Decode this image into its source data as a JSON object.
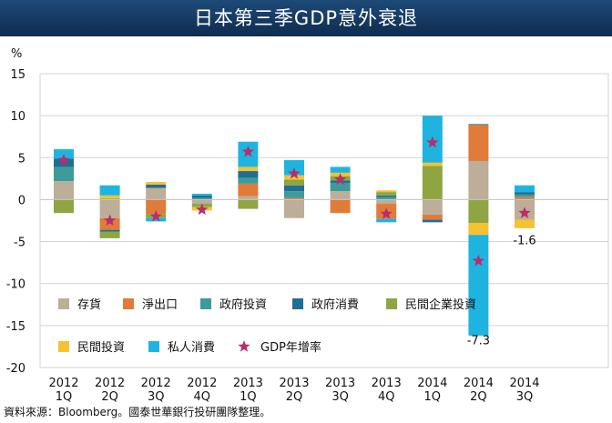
{
  "title": "日本第三季GDP意外衰退",
  "source": "資料來源：Bloomberg。國泰世華銀行投研團隊整理。",
  "chart_data": {
    "type": "bar",
    "stacked": true,
    "y_unit_label": "%",
    "ylim": [
      -20,
      15
    ],
    "yticks": [
      15,
      10,
      5,
      0,
      -5,
      -10,
      -15,
      -20
    ],
    "grid": true,
    "legend_position": "bottom-left",
    "categories": [
      "2012\n1Q",
      "2012\n2Q",
      "2012\n3Q",
      "2012\n4Q",
      "2013\n1Q",
      "2013\n2Q",
      "2013\n3Q",
      "2013\n4Q",
      "2014\n1Q",
      "2014\n2Q",
      "2014\n3Q"
    ],
    "series": [
      {
        "name": "存貨",
        "color": "#bcae98",
        "values": [
          2.2,
          -2.2,
          1.4,
          -0.5,
          0.4,
          -2.2,
          1.0,
          -0.5,
          -1.8,
          4.6,
          -2.4
        ]
      },
      {
        "name": "淨出口",
        "color": "#e07b39",
        "values": [
          0.0,
          -1.4,
          -1.7,
          0.0,
          1.5,
          0.2,
          -1.6,
          -1.8,
          -0.6,
          4.3,
          0.3
        ]
      },
      {
        "name": "政府投資",
        "color": "#3d9b9b",
        "values": [
          1.7,
          0.1,
          0.0,
          0.2,
          0.7,
          0.8,
          1.0,
          0.3,
          0.0,
          0.0,
          0.3
        ]
      },
      {
        "name": "政府消費",
        "color": "#1f6f94",
        "values": [
          1.0,
          -0.2,
          0.4,
          0.3,
          0.8,
          0.7,
          0.3,
          0.2,
          -0.3,
          0.1,
          0.3
        ]
      },
      {
        "name": "民間企業投資",
        "color": "#8fa542",
        "values": [
          -1.6,
          -0.8,
          -0.5,
          -0.4,
          -1.1,
          0.7,
          0.5,
          0.4,
          4.0,
          -2.8,
          0.0
        ]
      },
      {
        "name": "民間投資",
        "color": "#f5c230",
        "values": [
          0.0,
          0.4,
          0.3,
          -0.4,
          0.5,
          0.5,
          0.4,
          0.2,
          0.4,
          -1.4,
          -1.0
        ]
      },
      {
        "name": "私人消費",
        "color": "#1fb4e0",
        "values": [
          1.1,
          1.2,
          -0.4,
          0.2,
          3.0,
          1.8,
          0.7,
          -0.4,
          5.6,
          -12.0,
          0.8
        ]
      }
    ],
    "line_series": {
      "name": "GDP年增率",
      "color": "#b82e6b",
      "marker": "star",
      "values": [
        4.7,
        -2.5,
        -2.0,
        -1.2,
        5.7,
        3.1,
        2.4,
        -1.7,
        6.8,
        -7.3,
        -1.6
      ]
    },
    "annotations": [
      {
        "category_index": 9,
        "text": "-7.3",
        "y": -16.8
      },
      {
        "category_index": 10,
        "text": "-1.6",
        "y": -4.9
      }
    ]
  }
}
